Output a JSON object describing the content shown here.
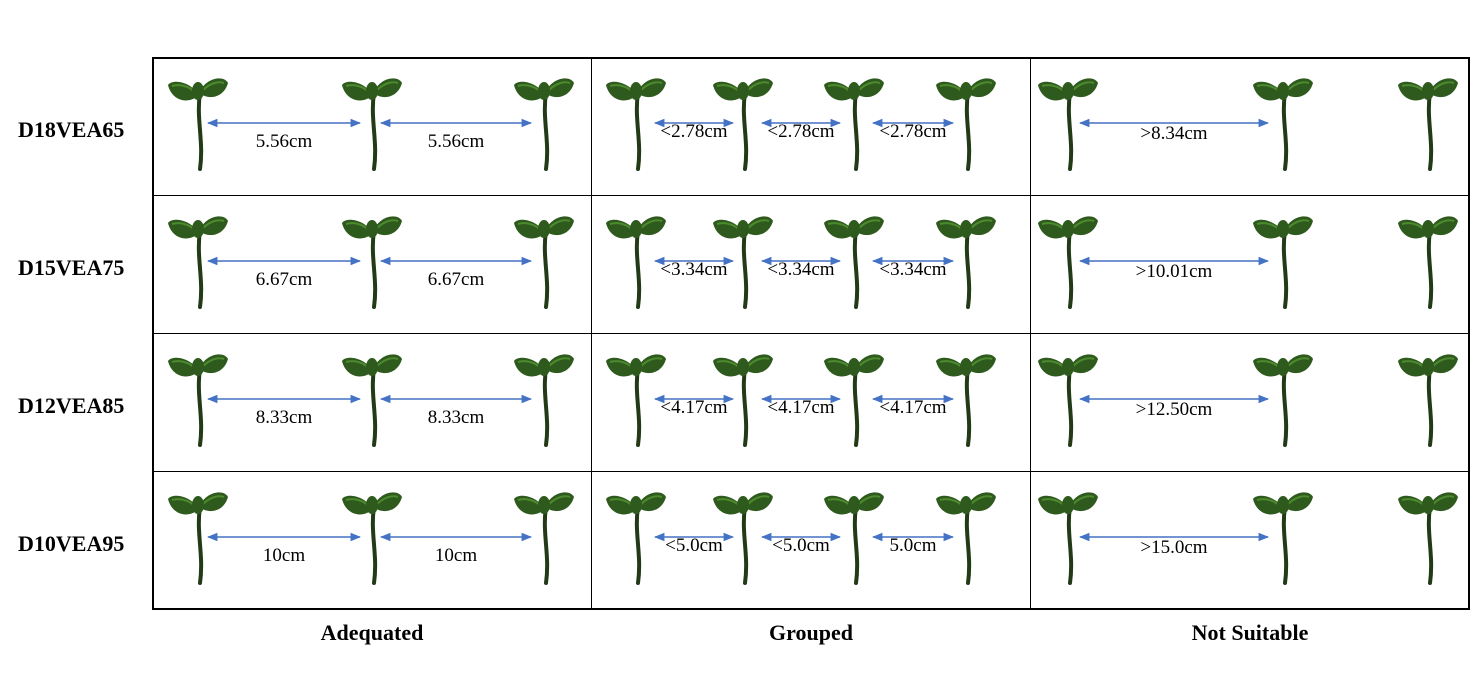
{
  "rows": [
    {
      "label": "D18VEA65",
      "adequated": [
        "5.56cm",
        "5.56cm"
      ],
      "grouped": [
        "<2.78cm",
        "<2.78cm",
        "<2.78cm"
      ],
      "not_suitable": [
        ">8.34cm"
      ]
    },
    {
      "label": "D15VEA75",
      "adequated": [
        "6.67cm",
        "6.67cm"
      ],
      "grouped": [
        "<3.34cm",
        "<3.34cm",
        "<3.34cm"
      ],
      "not_suitable": [
        ">10.01cm"
      ]
    },
    {
      "label": "D12VEA85",
      "adequated": [
        "8.33cm",
        "8.33cm"
      ],
      "grouped": [
        "<4.17cm",
        "<4.17cm",
        "<4.17cm"
      ],
      "not_suitable": [
        ">12.50cm"
      ]
    },
    {
      "label": "D10VEA95",
      "adequated": [
        "10cm",
        "10cm"
      ],
      "grouped": [
        "<5.0cm",
        "<5.0cm",
        "5.0cm"
      ],
      "not_suitable": [
        ">15.0cm"
      ]
    }
  ],
  "columns": [
    "Adequated",
    "Grouped",
    "Not Suitable"
  ],
  "colors": {
    "arrow": "#4472c4",
    "leaf": "#2f5a1e",
    "leaf_light": "#4d8a2e",
    "stem": "#223b16"
  }
}
